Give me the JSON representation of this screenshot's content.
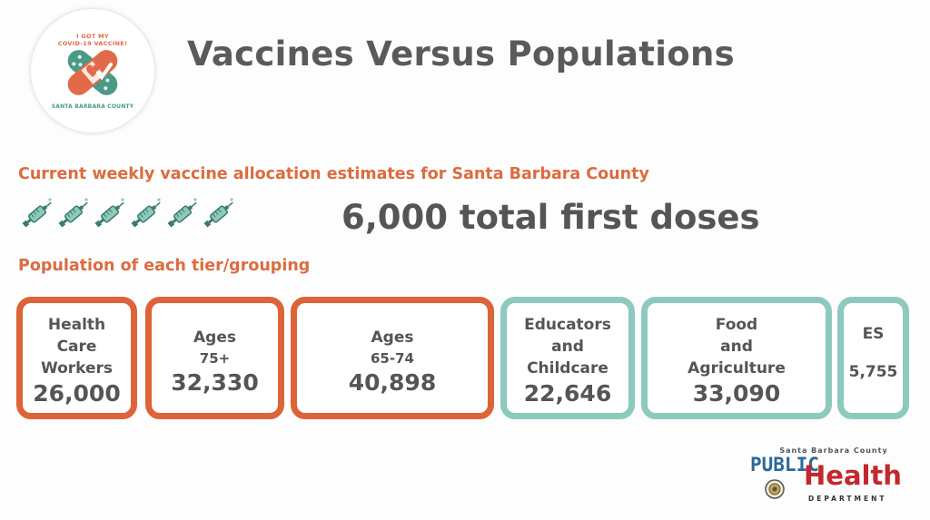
{
  "logo": {
    "top_text": "I GOT MY\nCOVID-19 VACCINE!",
    "bottom_text": "SANTA BARBARA COUNTY"
  },
  "title": "Vaccines Versus Populations",
  "subtitle": "Current weekly vaccine allocation estimates for Santa Barbara County",
  "syringe_count": 6,
  "doses_text": "6,000 total first doses",
  "population_label": "Population of each tier/grouping",
  "groups": [
    {
      "label": [
        "Health",
        "Care",
        "Workers"
      ],
      "value": "26,000",
      "color": "#dc6438"
    },
    {
      "label": [
        "Ages",
        "75+"
      ],
      "value": "32,330",
      "color": "#dc6438"
    },
    {
      "label": [
        "Ages",
        "65-74"
      ],
      "value": "40,898",
      "color": "#dc6438"
    },
    {
      "label": [
        "Educators",
        "and",
        "Childcare"
      ],
      "value": "22,646",
      "color": "#8ccabd"
    },
    {
      "label": [
        "Food",
        "and",
        "Agriculture"
      ],
      "value": "33,090",
      "color": "#8ccabd"
    },
    {
      "label": [
        "ES"
      ],
      "value": "5,755",
      "color": "#8ccabd"
    }
  ],
  "footer_logo": {
    "county": "Santa Barbara County",
    "public": "PUBLIC",
    "health": "Health",
    "department": "DEPARTMENT"
  },
  "colors": {
    "accent_orange": "#dc6438",
    "accent_teal": "#8ccabd",
    "title_gray": "#5a5a5a"
  }
}
